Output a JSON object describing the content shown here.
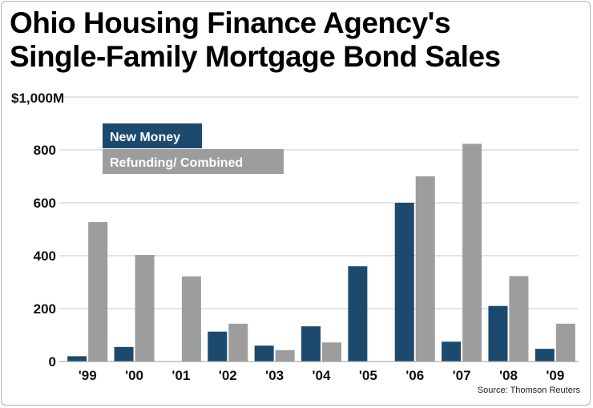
{
  "title": {
    "line1": "Ohio Housing Finance Agency's",
    "line2": "Single-Family Mortgage Bond Sales"
  },
  "chart_data": {
    "type": "bar",
    "title": "Ohio Housing Finance Agency's Single-Family Mortgage Bond Sales",
    "y_unit_label": "$1,000M",
    "categories": [
      "'99",
      "'00",
      "'01",
      "'02",
      "'03",
      "'04",
      "'05",
      "'06",
      "'07",
      "'08",
      "'09"
    ],
    "series": [
      {
        "name": "New Money",
        "color": "#1c4a6e",
        "values": [
          20,
          55,
          0,
          113,
          60,
          133,
          360,
          600,
          75,
          210,
          48
        ]
      },
      {
        "name": "Refunding/ Combined",
        "color": "#9d9d9d",
        "values": [
          527,
          403,
          322,
          143,
          43,
          72,
          0,
          700,
          823,
          323,
          143
        ]
      }
    ],
    "y_ticks": [
      0,
      200,
      400,
      600,
      800
    ],
    "ylim": [
      0,
      1000
    ],
    "grid": true,
    "legend_position": "top-left",
    "source": "Source: Thomson Reuters"
  }
}
